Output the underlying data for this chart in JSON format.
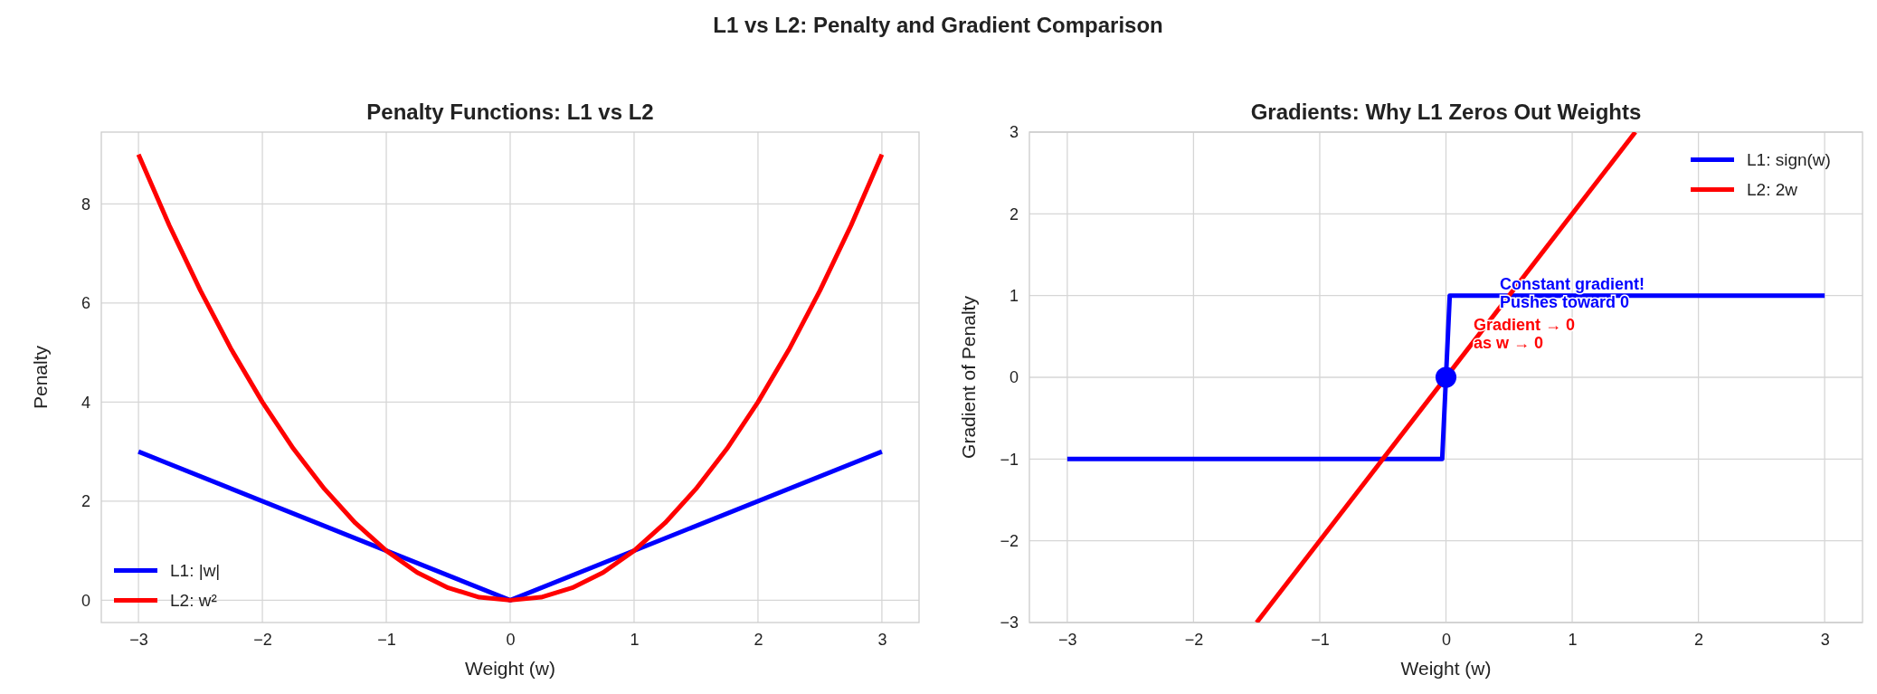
{
  "chart_data": [
    {
      "type": "line",
      "title": "Penalty Functions: L1 vs L2",
      "xlabel": "Weight (w)",
      "ylabel": "Penalty",
      "annotations": [
        "L1 vs L2: Penalty and Gradient Comparison"
      ],
      "xlim": [
        -3.3,
        3.3
      ],
      "ylim": [
        -0.45,
        9.45
      ],
      "xticks": [
        {
          "value": -3,
          "label": "−3"
        },
        {
          "value": -2,
          "label": "−2"
        },
        {
          "value": -1,
          "label": "−1"
        },
        0,
        1,
        2,
        3
      ],
      "yticks": [
        0,
        2,
        4,
        6,
        8
      ],
      "grid": true,
      "legend": "bottom left",
      "series": [
        {
          "name": "L1: |w|",
          "color": "#0000ff",
          "x": [
            -3,
            0,
            3
          ],
          "values": [
            3,
            0,
            3
          ]
        },
        {
          "name": "L2: w²",
          "color": "#ff0000",
          "x": [
            -3,
            -2.75,
            -2.5,
            -2.25,
            -2,
            -1.75,
            -1.5,
            -1.25,
            -1,
            -0.75,
            -0.5,
            -0.25,
            0,
            0.25,
            0.5,
            0.75,
            1,
            1.25,
            1.5,
            1.75,
            2,
            2.25,
            2.5,
            2.75,
            3
          ],
          "values": [
            9,
            7.56,
            6.25,
            5.06,
            4,
            3.06,
            2.25,
            1.56,
            1,
            0.56,
            0.25,
            0.06,
            0,
            0.06,
            0.25,
            0.56,
            1,
            1.56,
            2.25,
            3.06,
            4,
            5.06,
            6.25,
            7.56,
            9
          ]
        }
      ]
    },
    {
      "type": "line",
      "title": "Gradients: Why L1 Zeros Out Weights",
      "xlabel": "Weight (w)",
      "ylabel": "Gradient of Penalty",
      "annotations": [
        "Constant gradient!\nPushes toward 0",
        "Gradient → 0\nas w → 0"
      ],
      "xlim": [
        -3.3,
        3.3
      ],
      "ylim": [
        -3,
        3
      ],
      "xticks": [
        {
          "value": -3,
          "label": "−3"
        },
        {
          "value": -2,
          "label": "−2"
        },
        {
          "value": -1,
          "label": "−1"
        },
        0,
        1,
        2,
        3
      ],
      "yticks": [
        {
          "value": -3,
          "label": "−3"
        },
        {
          "value": -2,
          "label": "−2"
        },
        {
          "value": -1,
          "label": "−1"
        },
        0,
        1,
        2,
        3
      ],
      "grid": true,
      "legend": "top right",
      "series": [
        {
          "name": "L1: sign(w)",
          "color": "#0000ff",
          "x": [
            -3,
            -0.03,
            0.03,
            3
          ],
          "values": [
            -1,
            -1,
            1,
            1
          ]
        },
        {
          "name": "L2: 2w",
          "color": "#ff0000",
          "x": [
            -1.5,
            1.5
          ],
          "values": [
            -3,
            3
          ]
        },
        {
          "type": "scatter",
          "marker": "circle",
          "color": "#0000ff",
          "x": [
            0
          ],
          "values": [
            0
          ]
        }
      ]
    }
  ]
}
